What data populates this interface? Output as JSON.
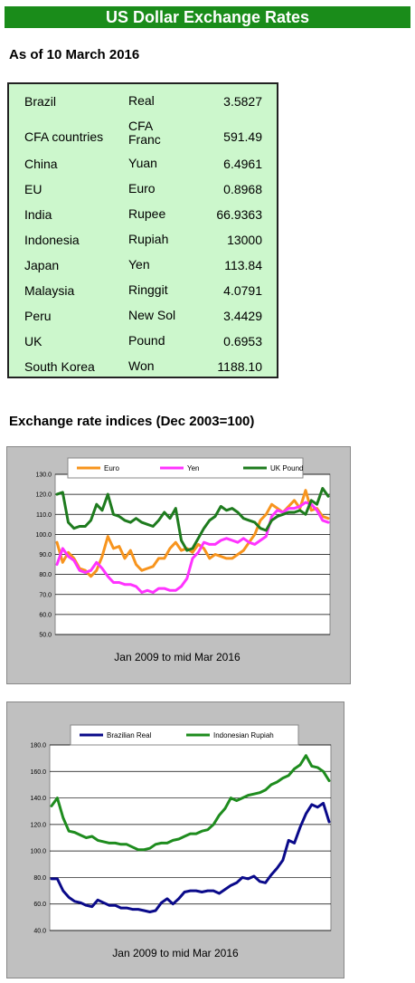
{
  "header": {
    "title": "US Dollar Exchange Rates",
    "as_of": "As of 10 March 2016",
    "indices_title": "Exchange rate indices (Dec 2003=100)"
  },
  "rates": [
    {
      "country": "Brazil",
      "currency": "Real",
      "rate": "3.5827"
    },
    {
      "country": "CFA countries",
      "currency": "CFA Franc",
      "rate": "591.49"
    },
    {
      "country": "China",
      "currency": "Yuan",
      "rate": "6.4961"
    },
    {
      "country": "EU",
      "currency": "Euro",
      "rate": "0.8968"
    },
    {
      "country": "India",
      "currency": "Rupee",
      "rate": "66.9363"
    },
    {
      "country": "Indonesia",
      "currency": "Rupiah",
      "rate": "13000"
    },
    {
      "country": "Japan",
      "currency": "Yen",
      "rate": "113.84"
    },
    {
      "country": "Malaysia",
      "currency": "Ringgit",
      "rate": "4.0791"
    },
    {
      "country": "Peru",
      "currency": "New Sol",
      "rate": "3.4429"
    },
    {
      "country": "UK",
      "currency": "Pound",
      "rate": "0.6953"
    },
    {
      "country": "South Korea",
      "currency": "Won",
      "rate": "1188.10"
    }
  ],
  "colors": {
    "banner": "#1a8c1a",
    "table_bg": "#ccf7cc",
    "panel_bg": "#c0c0c0",
    "euro": "#f7941d",
    "yen": "#ff33ff",
    "gbp": "#1e7b1e",
    "real": "#0a0a8a",
    "rupiah": "#1e8c1e"
  },
  "chart_data": [
    {
      "type": "line",
      "xlabel": "Jan 2009 to mid Mar 2016",
      "ylabel": "",
      "ylim": [
        50,
        130
      ],
      "yticks": [
        "130.0",
        "120.0",
        "110.0",
        "100.0",
        "90.0",
        "80.0",
        "70.0",
        "60.0",
        "50.0"
      ],
      "grid": true,
      "legend_position": "top",
      "series": [
        {
          "name": "Euro",
          "color": "#f7941d",
          "values": [
            96,
            86,
            91,
            88,
            83,
            82,
            79,
            82,
            89,
            99,
            93,
            94,
            88,
            92,
            85,
            82,
            83,
            84,
            88,
            88,
            93,
            96,
            92,
            93,
            91,
            95,
            93,
            88,
            90,
            89,
            88,
            88,
            90,
            92,
            96,
            100,
            107,
            110,
            115,
            113,
            111,
            114,
            117,
            113,
            122,
            112,
            113,
            109,
            108
          ]
        },
        {
          "name": "Yen",
          "color": "#ff33ff",
          "values": [
            85,
            93,
            89,
            87,
            82,
            81,
            82,
            86,
            83,
            79,
            76,
            76,
            75,
            75,
            74,
            71,
            72,
            71,
            73,
            73,
            72,
            72,
            74,
            78,
            88,
            91,
            96,
            95,
            95,
            97,
            98,
            97,
            96,
            98,
            96,
            95,
            97,
            99,
            109,
            112,
            111,
            113,
            113,
            114,
            116,
            115,
            112,
            107,
            106
          ]
        },
        {
          "name": "UK Pound",
          "color": "#1e7b1e",
          "values": [
            120,
            121,
            106,
            103,
            104,
            104,
            107,
            115,
            112,
            120,
            110,
            109,
            107,
            106,
            108,
            106,
            105,
            104,
            107,
            111,
            108,
            113,
            97,
            92,
            93,
            98,
            103,
            107,
            109,
            114,
            112,
            113,
            111,
            108,
            107,
            106,
            103,
            102,
            107,
            109,
            110,
            111,
            111,
            112,
            110,
            117,
            115,
            123,
            119
          ]
        }
      ]
    },
    {
      "type": "line",
      "xlabel": "Jan 2009 to mid Mar 2016",
      "ylabel": "",
      "ylim": [
        40,
        180
      ],
      "yticks": [
        "180.0",
        "160.0",
        "140.0",
        "120.0",
        "100.0",
        "80.0",
        "60.0",
        "40.0"
      ],
      "grid": true,
      "legend_position": "top",
      "series": [
        {
          "name": "Brazilian Real",
          "color": "#0a0a8a",
          "values": [
            79,
            79,
            70,
            65,
            62,
            61,
            59,
            58,
            63,
            61,
            59,
            59,
            57,
            57,
            56,
            56,
            55,
            54,
            55,
            61,
            64,
            60,
            64,
            69,
            70,
            70,
            69,
            70,
            70,
            68,
            71,
            74,
            76,
            80,
            79,
            81,
            77,
            76,
            82,
            87,
            93,
            108,
            106,
            118,
            128,
            135,
            133,
            136,
            122
          ]
        },
        {
          "name": "Indonesian Rupiah",
          "color": "#1e8c1e",
          "values": [
            134,
            140,
            125,
            115,
            114,
            112,
            110,
            111,
            108,
            107,
            106,
            106,
            105,
            105,
            103,
            101,
            101,
            102,
            105,
            106,
            106,
            108,
            109,
            111,
            113,
            113,
            115,
            116,
            120,
            127,
            132,
            140,
            138,
            140,
            142,
            143,
            144,
            146,
            150,
            152,
            155,
            157,
            162,
            165,
            172,
            164,
            163,
            160,
            153
          ]
        }
      ]
    }
  ]
}
